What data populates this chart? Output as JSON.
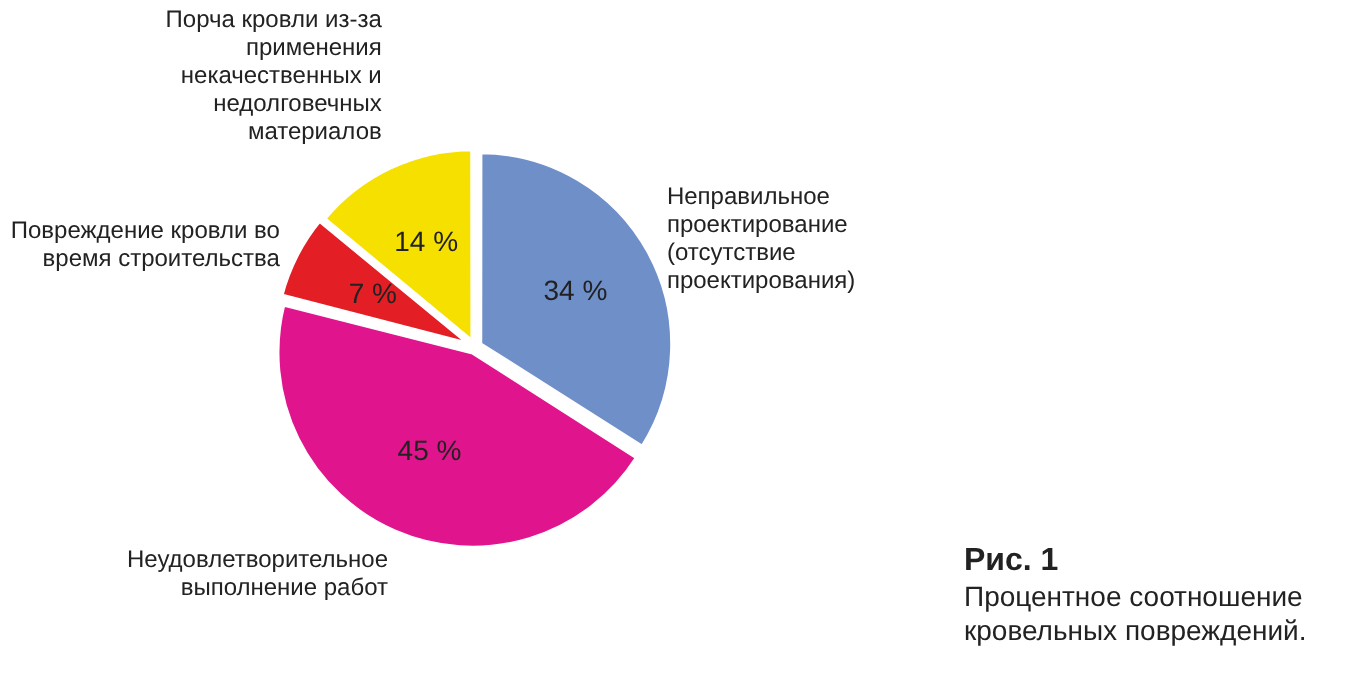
{
  "chart_data": {
    "type": "pie",
    "title": "Рис. 1",
    "subtitle": "Процентное соотношение кровельных повреждений.",
    "categories": [
      "Неправильное проектирование (отсутствие проектирования)",
      "Неудовлетворительное выполнение работ",
      "Повреждение кровли во время строительства",
      "Порча кровли из-за применения некачественных и недолговечных материалов"
    ],
    "values": [
      34,
      45,
      7,
      14
    ],
    "colors": [
      "#6f8fc9",
      "#e0148c",
      "#e31e24",
      "#f5e000"
    ],
    "value_labels": [
      "34 %",
      "45 %",
      "7 %",
      "14 %"
    ],
    "legend": false
  }
}
